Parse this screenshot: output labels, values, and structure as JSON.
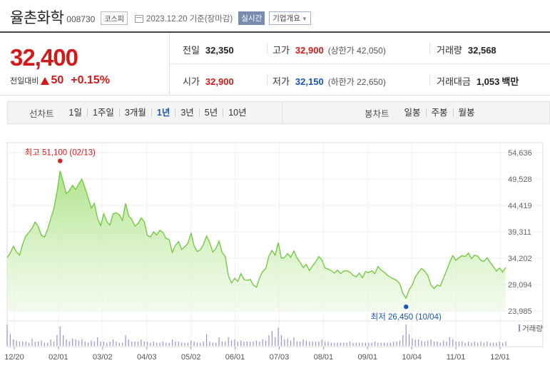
{
  "header": {
    "company": "율촌화학",
    "code": "008730",
    "market": "코스피",
    "as_of": "2023.12.20 기준(장마감)",
    "realtime_label": "실시간",
    "overview_label": "기업개요",
    "overview_caret": "▼"
  },
  "summary": {
    "price": "32,400",
    "change_label": "전일대비",
    "change_amount": "50",
    "change_pct": "+0.15%",
    "prev_close": {
      "label": "전일",
      "value": "32,350"
    },
    "high": {
      "label": "고가",
      "value": "32,900",
      "limit_text": "(상한가 42,050)"
    },
    "volume": {
      "label": "거래량",
      "value": "32,568"
    },
    "open": {
      "label": "시가",
      "value": "32,900"
    },
    "low": {
      "label": "저가",
      "value": "32,150",
      "limit_text": "(하한가 22,650)"
    },
    "trade_value": {
      "label": "거래대금",
      "value": "1,053",
      "unit": "백만"
    },
    "colors": {
      "up": "#d21a1a",
      "down": "#1a55b8"
    }
  },
  "tabs": {
    "line_title": "선차트",
    "line_items": [
      "1일",
      "1주일",
      "3개월",
      "1년",
      "3년",
      "5년",
      "10년"
    ],
    "line_selected": "1년",
    "candle_title": "봉차트",
    "candle_items": [
      "일봉",
      "주봉",
      "월봉"
    ]
  },
  "chart_data": {
    "type": "area",
    "y_ticks": [
      "54,636",
      "49,528",
      "44,419",
      "39,311",
      "34,202",
      "29,094",
      "23,985"
    ],
    "ylim": [
      23985,
      54636
    ],
    "x_ticks": [
      "12/20",
      "02/01",
      "03/02",
      "04/03",
      "05/02",
      "06/01",
      "07/03",
      "08/01",
      "09/01",
      "10/04",
      "11/01",
      "12/01"
    ],
    "high_annotation": "최고 51,100 (02/13)",
    "low_annotation": "최저 26,450 (10/04)",
    "high_value": 51100,
    "low_value": 26450,
    "volume_label": "거래량",
    "series": [
      {
        "values": [
          34300,
          35200,
          36500,
          35400,
          34800,
          36900,
          38500,
          39200,
          40000,
          41200,
          40300,
          38600,
          38300,
          39800,
          41900,
          43800,
          47000,
          51100,
          49000,
          46700,
          47300,
          48300,
          47500,
          48600,
          49500,
          47800,
          45900,
          43900,
          44800,
          41900,
          40500,
          42800,
          41300,
          40600,
          42800,
          43000,
          42600,
          41500,
          44800,
          42400,
          41700,
          40400,
          40900,
          42000,
          41300,
          38600,
          38300,
          39300,
          38700,
          39600,
          39200,
          38000,
          37800,
          35300,
          36700,
          37400,
          35900,
          36400,
          37100,
          39000,
          36600,
          35500,
          35800,
          36900,
          38500,
          37200,
          35400,
          36100,
          37500,
          35300,
          34500,
          30800,
          29400,
          30300,
          29700,
          31200,
          30100,
          29900,
          30100,
          29000,
          28600,
          30400,
          31600,
          32200,
          34600,
          35700,
          34800,
          37200,
          34200,
          34300,
          35100,
          34400,
          35600,
          34300,
          33400,
          32400,
          33000,
          31800,
          32700,
          33500,
          34500,
          33900,
          32300,
          32100,
          31800,
          31300,
          31900,
          31200,
          31700,
          31800,
          31500,
          30900,
          30600,
          31300,
          30400,
          31600,
          31400,
          31800,
          31200,
          32600,
          31900,
          31500,
          30900,
          30500,
          30200,
          29900,
          29200,
          27400,
          26450,
          28100,
          29000,
          30600,
          31500,
          32200,
          31700,
          30800,
          29000,
          28300,
          29000,
          28800,
          30300,
          31800,
          33400,
          34700,
          33800,
          34300,
          34700,
          34500,
          35200,
          34100,
          34800,
          34600,
          33800,
          33600,
          34300,
          33400,
          32600,
          31700,
          32300,
          31500,
          32400
        ]
      }
    ],
    "volume": [
      1.0,
      0.55,
      0.3,
      0.25,
      0.2,
      0.2,
      0.2,
      0.15,
      0.35,
      0.2,
      0.2,
      0.25,
      0.15,
      0.15,
      0.3,
      0.2,
      0.5,
      0.9,
      0.5,
      0.3,
      0.2,
      0.35,
      0.3,
      0.25,
      0.3,
      0.2,
      0.15,
      0.25,
      0.2,
      0.4,
      0.2,
      0.2,
      0.15,
      0.2,
      0.3,
      0.2,
      0.15,
      0.15,
      0.5,
      0.3,
      0.2,
      0.2,
      0.2,
      0.3,
      0.2,
      0.2,
      0.15,
      0.2,
      0.15,
      0.15,
      0.2,
      0.15,
      0.15,
      0.3,
      0.2,
      0.2,
      0.15,
      0.15,
      0.15,
      0.25,
      0.2,
      0.15,
      0.15,
      0.2,
      0.55,
      0.2,
      0.15,
      0.15,
      0.4,
      0.2,
      0.2,
      0.4,
      0.25,
      0.3,
      0.2,
      0.25,
      0.2,
      0.2,
      0.2,
      0.2,
      0.25,
      0.2,
      0.3,
      0.25,
      0.5,
      0.7,
      0.4,
      0.85,
      0.5,
      0.3,
      0.35,
      0.25,
      0.4,
      0.2,
      0.2,
      0.3,
      0.25,
      0.2,
      0.2,
      0.2,
      0.2,
      0.3,
      0.2,
      0.2,
      0.15,
      0.15,
      0.15,
      0.15,
      0.15,
      0.15,
      0.2,
      0.15,
      0.15,
      0.15,
      0.15,
      0.15,
      0.15,
      0.15,
      0.2,
      0.15,
      0.15,
      0.15,
      0.15,
      0.15,
      0.2,
      0.2,
      0.25,
      0.5,
      1.0,
      0.55,
      0.35,
      0.3,
      0.3,
      0.25,
      0.2,
      0.25,
      0.3,
      0.2,
      0.2,
      0.15,
      0.25,
      0.2,
      0.4,
      0.3,
      0.2,
      0.2,
      0.2,
      0.15,
      0.2,
      0.15,
      0.2,
      0.15,
      0.2,
      0.15,
      0.2,
      0.15,
      0.15,
      0.15,
      0.2,
      0.15,
      0.2
    ]
  }
}
